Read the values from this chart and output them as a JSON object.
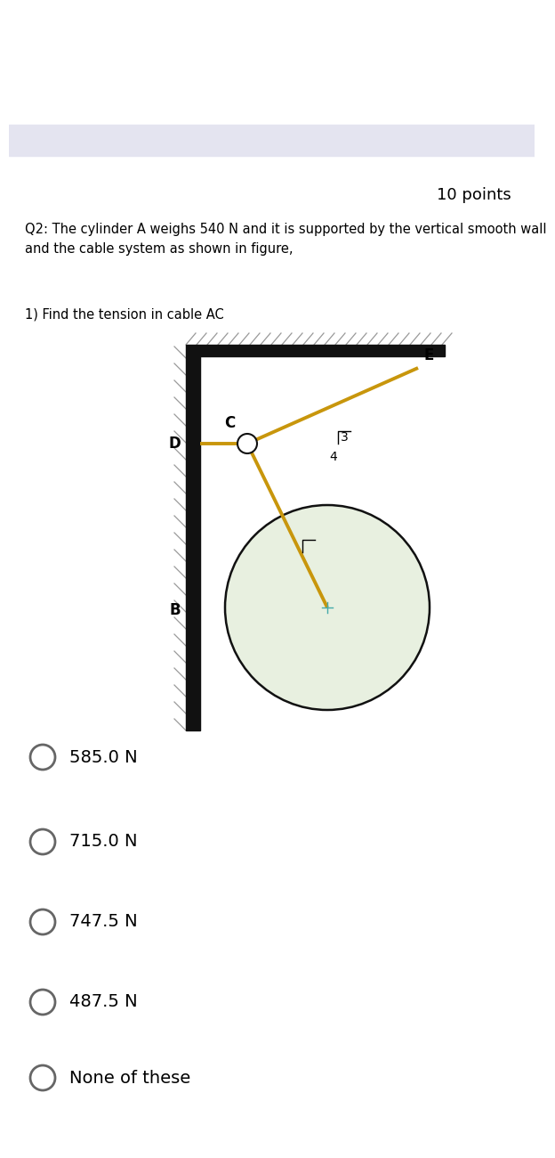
{
  "title_points": "10 points",
  "question_text": "Q2: The cylinder A weighs 540 N and it is supported by the vertical smooth wall\nand the cable system as shown in figure,",
  "sub_question": "1) Find the tension in cable AC",
  "options": [
    "585.0 N",
    "715.0 N",
    "747.5 N",
    "487.5 N",
    "None of these"
  ],
  "bg_color": "#ffffff",
  "cable_color": "#c8960c",
  "circle_fill": "#e8f0e0",
  "circle_edge": "#111111",
  "hatch_color": "#999999",
  "text_color": "#000000",
  "top_bar_color": "#e4e4f0",
  "wall_color": "#111111"
}
